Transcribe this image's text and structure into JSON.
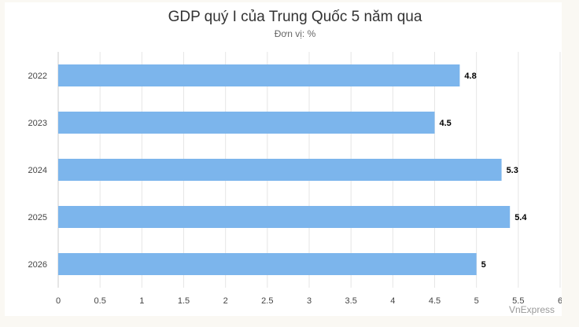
{
  "chart_data": {
    "type": "bar",
    "orientation": "horizontal",
    "title": "GDP quý I của Trung Quốc 5 năm qua",
    "subtitle": "Đơn vị: %",
    "categories": [
      "2022",
      "2023",
      "2024",
      "2025",
      "2026"
    ],
    "values": [
      4.8,
      4.5,
      5.3,
      5.4,
      5
    ],
    "data_labels": [
      "4.8",
      "4.5",
      "5.3",
      "5.4",
      "5"
    ],
    "x_ticks": [
      "0",
      "0.5",
      "1",
      "1.5",
      "2",
      "2.5",
      "3",
      "3.5",
      "4",
      "4.5",
      "5",
      "5.5",
      "6"
    ],
    "xlim": [
      0,
      6
    ],
    "bar_color": "#7cb5ec",
    "grid": true,
    "legend": "none"
  },
  "credit": "VnExpress"
}
